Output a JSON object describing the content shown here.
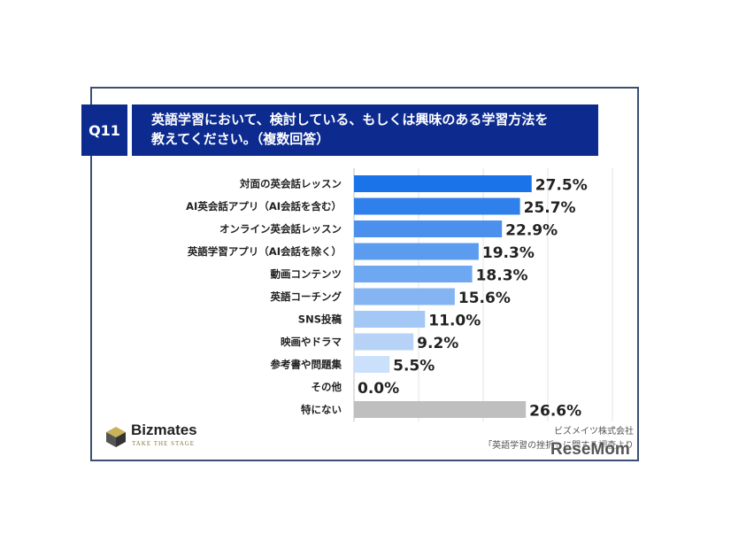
{
  "question": {
    "badge": "Q11",
    "title_line1": "英語学習において、検討している、もしくは興味のある学習方法を",
    "title_line2": "教えてください。（複数回答）"
  },
  "chart_data": {
    "type": "bar",
    "orientation": "horizontal",
    "categories": [
      "対面の英会話レッスン",
      "AI英会話アプリ（AI会話を含む）",
      "オンライン英会話レッスン",
      "英語学習アプリ（AI会話を除く）",
      "動画コンテンツ",
      "英語コーチング",
      "SNS投稿",
      "映画やドラマ",
      "参考書や問題集",
      "その他",
      "特にない"
    ],
    "values": [
      27.5,
      25.7,
      22.9,
      19.3,
      18.3,
      15.6,
      11.0,
      9.2,
      5.5,
      0.0,
      26.6
    ],
    "value_labels": [
      "27.5%",
      "25.7%",
      "22.9%",
      "19.3%",
      "18.3%",
      "15.6%",
      "11.0%",
      "9.2%",
      "5.5%",
      "0.0%",
      "26.6%"
    ],
    "colors": [
      "#1a73e8",
      "#2f80ea",
      "#4a90ec",
      "#5c9cee",
      "#6ea8f0",
      "#84b5f2",
      "#a3c8f5",
      "#b6d3f7",
      "#cbe0fa",
      "#dbe8fb",
      "#bfbfbf"
    ],
    "xlim": [
      0,
      40
    ],
    "grid": true
  },
  "brand": {
    "name": "Bizmates",
    "tagline": "TAKE THE STAGE"
  },
  "source": {
    "line1": "ビズメイツ株式会社",
    "line2": "「英語学習の挫折」に関する調査より"
  },
  "watermark": "ReseMom"
}
